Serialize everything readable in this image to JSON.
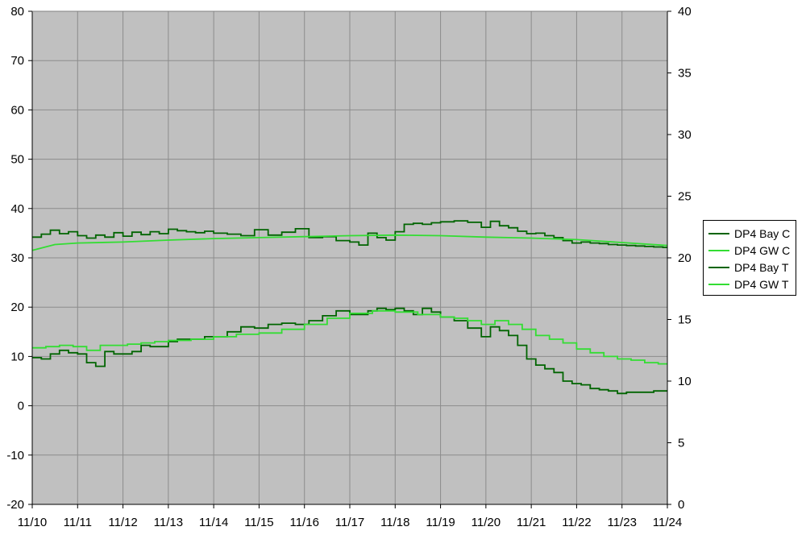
{
  "chart_data": {
    "type": "line",
    "background": "#c0c0c0",
    "grid": true,
    "legend_position": "right",
    "x_ticks": [
      "11/10",
      "11/11",
      "11/12",
      "11/13",
      "11/14",
      "11/15",
      "11/16",
      "11/17",
      "11/18",
      "11/19",
      "11/20",
      "11/21",
      "11/22",
      "11/23",
      "11/24"
    ],
    "xlim": [
      0,
      14
    ],
    "y_left": {
      "lim": [
        -20,
        80
      ],
      "ticks": [
        -20,
        -10,
        0,
        10,
        20,
        30,
        40,
        50,
        60,
        70,
        80
      ]
    },
    "y_right": {
      "lim": [
        0,
        40
      ],
      "ticks": [
        0,
        5,
        10,
        15,
        20,
        25,
        30,
        35,
        40
      ]
    },
    "series": [
      {
        "name": "DP4 Bay C",
        "axis": "left",
        "color": "#006400",
        "step": true,
        "x": [
          0,
          0.2,
          0.4,
          0.6,
          0.8,
          1.0,
          1.2,
          1.4,
          1.6,
          1.8,
          2.0,
          2.2,
          2.4,
          2.6,
          2.8,
          3.0,
          3.2,
          3.4,
          3.6,
          3.8,
          4.0,
          4.3,
          4.6,
          4.9,
          5.2,
          5.5,
          5.8,
          6.1,
          6.4,
          6.7,
          7.0,
          7.2,
          7.4,
          7.6,
          7.8,
          8.0,
          8.2,
          8.4,
          8.6,
          8.8,
          9.0,
          9.3,
          9.6,
          9.9,
          10.1,
          10.3,
          10.5,
          10.7,
          10.9,
          11.1,
          11.3,
          11.5,
          11.7,
          11.9,
          12.1,
          12.3,
          12.5,
          12.7,
          12.9,
          13.1,
          13.3,
          13.5,
          13.7,
          13.9,
          14.0
        ],
        "y": [
          34.2,
          34.8,
          35.6,
          34.9,
          35.3,
          34.5,
          34.0,
          34.6,
          34.2,
          35.1,
          34.4,
          35.2,
          34.7,
          35.3,
          34.9,
          35.8,
          35.5,
          35.3,
          35.1,
          35.4,
          35.0,
          34.8,
          34.5,
          35.7,
          34.6,
          35.2,
          35.9,
          34.1,
          34.3,
          33.5,
          33.2,
          32.6,
          35.0,
          34.1,
          33.6,
          35.3,
          36.8,
          37.0,
          36.8,
          37.1,
          37.3,
          37.5,
          37.2,
          36.2,
          37.4,
          36.5,
          36.1,
          35.4,
          34.9,
          35.0,
          34.5,
          34.1,
          33.5,
          33.0,
          33.2,
          33.0,
          32.9,
          32.7,
          32.6,
          32.5,
          32.4,
          32.3,
          32.2,
          32.1,
          32.1
        ]
      },
      {
        "name": "DP4 GW C",
        "axis": "left",
        "color": "#33dd33",
        "step": false,
        "x": [
          0,
          0.5,
          1,
          2,
          3,
          4,
          5,
          6,
          7,
          8,
          9,
          10,
          11,
          12,
          13,
          14
        ],
        "y": [
          31.5,
          32.7,
          33.0,
          33.2,
          33.6,
          33.9,
          34.1,
          34.3,
          34.5,
          34.6,
          34.5,
          34.2,
          34.0,
          33.7,
          33.1,
          32.5
        ]
      },
      {
        "name": "DP4 Bay T",
        "axis": "right",
        "color": "#006400",
        "step": true,
        "x": [
          0,
          0.2,
          0.4,
          0.6,
          0.8,
          1.0,
          1.2,
          1.4,
          1.6,
          1.8,
          2.0,
          2.2,
          2.4,
          2.6,
          2.8,
          3.0,
          3.2,
          3.4,
          3.6,
          3.8,
          4.0,
          4.3,
          4.6,
          4.9,
          5.2,
          5.5,
          5.8,
          6.1,
          6.4,
          6.7,
          7.0,
          7.2,
          7.4,
          7.6,
          7.8,
          8.0,
          8.2,
          8.4,
          8.6,
          8.8,
          9.0,
          9.3,
          9.6,
          9.9,
          10.1,
          10.3,
          10.5,
          10.7,
          10.9,
          11.1,
          11.3,
          11.5,
          11.7,
          11.9,
          12.1,
          12.3,
          12.5,
          12.7,
          12.9,
          13.1,
          13.3,
          13.5,
          13.7,
          13.9,
          14.0
        ],
        "y": [
          11.9,
          11.8,
          12.2,
          12.5,
          12.3,
          12.2,
          11.5,
          11.2,
          12.4,
          12.2,
          12.2,
          12.4,
          12.9,
          12.8,
          12.8,
          13.2,
          13.4,
          13.4,
          13.4,
          13.6,
          13.6,
          14.0,
          14.4,
          14.3,
          14.6,
          14.7,
          14.6,
          14.9,
          15.3,
          15.7,
          15.4,
          15.4,
          15.7,
          15.9,
          15.8,
          15.9,
          15.7,
          15.4,
          15.9,
          15.6,
          15.2,
          14.9,
          14.3,
          13.6,
          14.4,
          14.1,
          13.7,
          12.9,
          11.8,
          11.3,
          11.0,
          10.7,
          10.0,
          9.8,
          9.7,
          9.4,
          9.3,
          9.2,
          9.0,
          9.1,
          9.1,
          9.1,
          9.2,
          9.2,
          9.2
        ]
      },
      {
        "name": "DP4 GW T",
        "axis": "right",
        "color": "#33dd33",
        "step": true,
        "x": [
          0,
          0.3,
          0.6,
          0.9,
          1.2,
          1.5,
          1.8,
          2.1,
          2.4,
          2.7,
          3.0,
          3.5,
          4.0,
          4.5,
          5.0,
          5.5,
          6.0,
          6.5,
          7.0,
          7.5,
          8.0,
          8.5,
          9.0,
          9.3,
          9.6,
          9.9,
          10.2,
          10.5,
          10.8,
          11.1,
          11.4,
          11.7,
          12.0,
          12.3,
          12.6,
          12.9,
          13.2,
          13.5,
          13.8,
          14.0
        ],
        "y": [
          12.7,
          12.8,
          12.9,
          12.8,
          12.5,
          12.9,
          12.9,
          13.0,
          13.1,
          13.2,
          13.3,
          13.4,
          13.6,
          13.8,
          13.9,
          14.2,
          14.6,
          15.1,
          15.5,
          15.7,
          15.6,
          15.4,
          15.2,
          15.1,
          14.9,
          14.6,
          14.9,
          14.6,
          14.2,
          13.7,
          13.4,
          13.1,
          12.6,
          12.3,
          12.0,
          11.8,
          11.7,
          11.5,
          11.4,
          11.4
        ]
      }
    ]
  }
}
